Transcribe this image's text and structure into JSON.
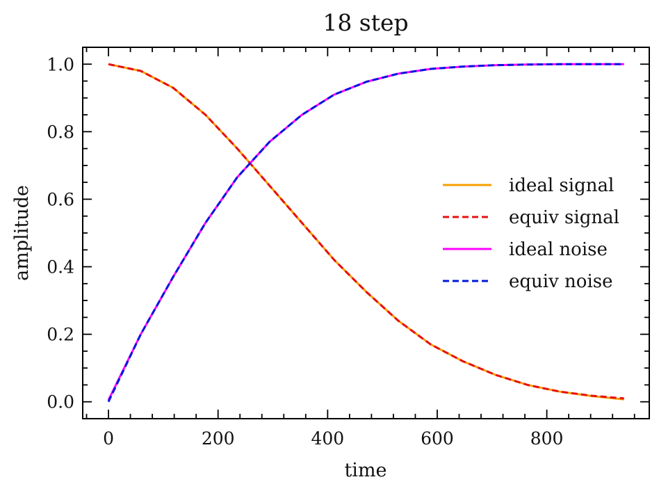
{
  "chart_data": {
    "type": "line",
    "title": "18 step",
    "xlabel": "time",
    "ylabel": "amplitude",
    "xlim": [
      -47,
      987
    ],
    "ylim": [
      -0.05,
      1.05
    ],
    "xticks": [
      0,
      200,
      400,
      600,
      800
    ],
    "yticks": [
      0.0,
      0.2,
      0.4,
      0.6,
      0.8,
      1.0
    ],
    "xtick_labels": [
      "0",
      "200",
      "400",
      "600",
      "800"
    ],
    "ytick_labels": [
      "0.0",
      "0.2",
      "0.4",
      "0.6",
      "0.8",
      "1.0"
    ],
    "legend_position": "center-right",
    "x": [
      0,
      59,
      118,
      177,
      235,
      294,
      353,
      412,
      471,
      529,
      588,
      647,
      706,
      765,
      824,
      882,
      941
    ],
    "series": [
      {
        "name": "ideal signal",
        "color": "#f5a000",
        "style": "solid",
        "values": [
          1.0,
          0.98,
          0.93,
          0.85,
          0.75,
          0.64,
          0.53,
          0.42,
          0.325,
          0.24,
          0.17,
          0.12,
          0.08,
          0.05,
          0.03,
          0.017,
          0.007
        ]
      },
      {
        "name": "equiv signal",
        "color": "#e81010",
        "style": "dashed",
        "values": [
          1.0,
          0.98,
          0.93,
          0.85,
          0.75,
          0.64,
          0.53,
          0.42,
          0.325,
          0.24,
          0.17,
          0.12,
          0.08,
          0.05,
          0.03,
          0.018,
          0.01
        ]
      },
      {
        "name": "ideal noise",
        "color": "#ff00ff",
        "style": "solid",
        "values": [
          0.005,
          0.2,
          0.37,
          0.53,
          0.665,
          0.77,
          0.85,
          0.91,
          0.948,
          0.972,
          0.986,
          0.993,
          0.997,
          0.999,
          1.0,
          1.0,
          1.0
        ]
      },
      {
        "name": "equiv noise",
        "color": "#0018dd",
        "style": "dashed",
        "values": [
          0.0,
          0.2,
          0.37,
          0.53,
          0.665,
          0.77,
          0.85,
          0.91,
          0.948,
          0.972,
          0.986,
          0.993,
          0.997,
          0.999,
          1.0,
          1.0,
          1.0
        ]
      }
    ]
  }
}
